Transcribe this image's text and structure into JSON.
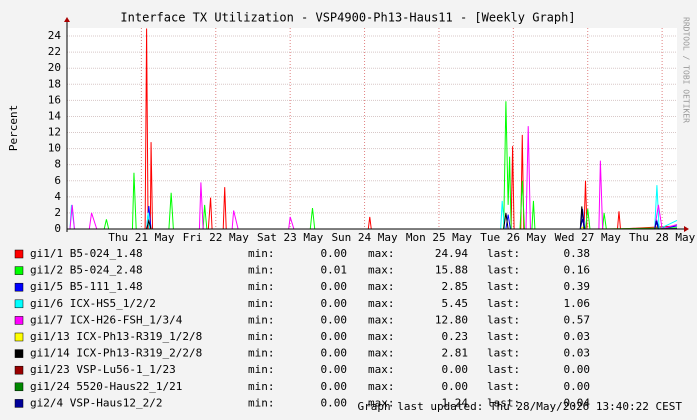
{
  "chart_data": {
    "type": "line",
    "title": "Interface TX Utilization - VSP4900-Ph13-Haus11 - [Weekly Graph]",
    "y_label": "Percent",
    "watermark": "RRDTOOL / TOBI OETIKER",
    "footer": "Graph last updated: Thu 28/May/2026 13:40:22 CEST",
    "xlim": [
      20,
      28.2
    ],
    "xticks": [
      {
        "value": 21,
        "label": "Thu 21 May"
      },
      {
        "value": 22,
        "label": "Fri 22 May"
      },
      {
        "value": 23,
        "label": "Sat 23 May"
      },
      {
        "value": 24,
        "label": "Sun 24 May"
      },
      {
        "value": 25,
        "label": "Mon 25 May"
      },
      {
        "value": 26,
        "label": "Tue 26 May"
      },
      {
        "value": 27,
        "label": "Wed 27 May"
      },
      {
        "value": 28,
        "label": "Thu 28 May"
      }
    ],
    "ylim": [
      0,
      25
    ],
    "yticks": [
      0,
      2,
      4,
      6,
      8,
      10,
      12,
      14,
      16,
      18,
      20,
      22,
      24
    ],
    "grid": true,
    "stat_labels": [
      "min:",
      "max:",
      "last:"
    ],
    "series": [
      {
        "name": "gi1/1 B5-024_1.48",
        "color": "#ff0000",
        "x": [
          20,
          21.05,
          21.07,
          21.09,
          21.12,
          21.13,
          21.15,
          21.9,
          21.93,
          21.95,
          22.1,
          22.12,
          22.14,
          24.05,
          24.07,
          24.09,
          25.97,
          25.99,
          26.01,
          26.1,
          26.12,
          26.14,
          26.95,
          26.97,
          26.99,
          27.4,
          27.42,
          27.44,
          28.2
        ],
        "values": [
          0,
          0,
          24.94,
          0,
          0,
          10.8,
          0,
          0,
          3.9,
          0,
          0,
          5.2,
          0,
          0,
          1.5,
          0,
          0,
          10.3,
          0,
          0,
          11.7,
          0,
          0,
          6,
          0,
          0,
          2.2,
          0,
          0.38
        ],
        "min": {
          "value": 0,
          "label": "0.00"
        },
        "max": {
          "value": 24.94,
          "label": "24.94"
        },
        "last": {
          "value": 0.38,
          "label": "0.38"
        }
      },
      {
        "name": "gi1/2 B5-024_2.48",
        "color": "#00ff00",
        "x": [
          20,
          20.5,
          20.53,
          20.56,
          20.88,
          20.9,
          20.93,
          21.37,
          21.4,
          21.43,
          21.83,
          21.85,
          21.88,
          23.27,
          23.3,
          23.33,
          25.87,
          25.9,
          25.93,
          25.95,
          25.97,
          26.09,
          26.12,
          26.15,
          26.25,
          26.27,
          26.29,
          26.97,
          27.0,
          27.03,
          27.2,
          27.22,
          27.25,
          28.2
        ],
        "values": [
          0,
          0,
          1.2,
          0,
          0,
          7,
          0,
          0,
          4.5,
          0,
          0,
          3,
          0,
          0,
          2.6,
          0,
          0,
          15.88,
          3,
          9,
          0,
          0,
          6,
          0,
          0,
          3.5,
          0,
          0,
          2.5,
          0,
          0,
          2,
          0,
          0.16
        ],
        "min": {
          "value": 0.01,
          "label": "0.01"
        },
        "max": {
          "value": 15.88,
          "label": "15.88"
        },
        "last": {
          "value": 0.16,
          "label": "0.16"
        }
      },
      {
        "name": "gi1/5 B5-111_1.48",
        "color": "#0000ff",
        "x": [
          20,
          21.07,
          21.1,
          21.13,
          25.9,
          25.93,
          25.96,
          26.9,
          26.93,
          26.96,
          27.9,
          27.93,
          27.96,
          28.2
        ],
        "values": [
          0,
          0,
          2.85,
          0,
          0,
          1.8,
          0,
          0,
          2.5,
          0,
          0,
          1,
          0,
          0.39
        ],
        "min": {
          "value": 0,
          "label": "0.00"
        },
        "max": {
          "value": 2.85,
          "label": "2.85"
        },
        "last": {
          "value": 0.39,
          "label": "0.39"
        }
      },
      {
        "name": "gi1/6 ICX-HS5_1/2/2",
        "color": "#00ffff",
        "x": [
          20,
          20.04,
          20.06,
          20.1,
          21.07,
          21.09,
          21.11,
          25.83,
          25.85,
          25.88,
          27.9,
          27.93,
          27.96,
          28.2
        ],
        "values": [
          0,
          0,
          3,
          0,
          0,
          2,
          0,
          0,
          3.5,
          0,
          0,
          5.45,
          0,
          1.06
        ],
        "min": {
          "value": 0,
          "label": "0.00"
        },
        "max": {
          "value": 5.45,
          "label": "5.45"
        },
        "last": {
          "value": 1.06,
          "label": "1.06"
        }
      },
      {
        "name": "gi1/7 ICX-H26-FSH_1/3/4",
        "color": "#ff00ff",
        "x": [
          20,
          20.04,
          20.07,
          20.1,
          20.3,
          20.33,
          20.4,
          21.78,
          21.8,
          21.83,
          22.22,
          22.24,
          22.3,
          22.98,
          23.0,
          23.05,
          26.17,
          26.2,
          26.23,
          27.15,
          27.17,
          27.2,
          27.9,
          27.95,
          28.0,
          28.2
        ],
        "values": [
          0,
          0,
          3,
          0,
          0,
          2,
          0,
          0,
          5.8,
          0,
          0,
          2.3,
          0,
          0,
          1.5,
          0,
          0,
          12.8,
          0,
          0,
          8.5,
          0,
          0,
          3,
          0,
          0.57
        ],
        "min": {
          "value": 0,
          "label": "0.00"
        },
        "max": {
          "value": 12.8,
          "label": "12.80"
        },
        "last": {
          "value": 0.57,
          "label": "0.57"
        }
      },
      {
        "name": "gi1/13 ICX-Ph13-R319_1/2/8",
        "color": "#ffff00",
        "x": [
          20,
          26.9,
          26.93,
          26.96,
          28.2
        ],
        "values": [
          0,
          0,
          0.23,
          0,
          0.03
        ],
        "min": {
          "value": 0,
          "label": "0.00"
        },
        "max": {
          "value": 0.23,
          "label": "0.23"
        },
        "last": {
          "value": 0.03,
          "label": "0.03"
        }
      },
      {
        "name": "gi1/14 ICX-Ph13-R319_2/2/8",
        "color": "#000000",
        "x": [
          20,
          21.07,
          21.1,
          21.13,
          25.87,
          25.9,
          25.93,
          26.9,
          26.92,
          26.95,
          28.2
        ],
        "values": [
          0,
          0,
          1,
          0,
          0,
          2,
          0,
          0,
          2.81,
          0,
          0.03
        ],
        "min": {
          "value": 0,
          "label": "0.00"
        },
        "max": {
          "value": 2.81,
          "label": "2.81"
        },
        "last": {
          "value": 0.03,
          "label": "0.03"
        }
      },
      {
        "name": "gi1/23 VSP-Lu56-1_1/23",
        "color": "#990000",
        "x": [
          20,
          28.2
        ],
        "values": [
          0,
          0
        ],
        "min": {
          "value": 0,
          "label": "0.00"
        },
        "max": {
          "value": 0,
          "label": "0.00"
        },
        "last": {
          "value": 0,
          "label": "0.00"
        }
      },
      {
        "name": "gi1/24 5520-Haus22_1/21",
        "color": "#008800",
        "x": [
          20,
          28.2
        ],
        "values": [
          0,
          0
        ],
        "min": {
          "value": 0,
          "label": "0.00"
        },
        "max": {
          "value": 0,
          "label": "0.00"
        },
        "last": {
          "value": 0,
          "label": "0.00"
        }
      },
      {
        "name": "gi2/4 VSP-Haus12_2/2",
        "color": "#000099",
        "x": [
          20,
          26.9,
          26.93,
          26.96,
          27.9,
          27.92,
          27.95,
          28.2
        ],
        "values": [
          0,
          0,
          1.24,
          0,
          0,
          1,
          0,
          0.04
        ],
        "min": {
          "value": 0,
          "label": "0.00"
        },
        "max": {
          "value": 1.24,
          "label": "1.24"
        },
        "last": {
          "value": 0.04,
          "label": "0.04"
        }
      }
    ]
  }
}
